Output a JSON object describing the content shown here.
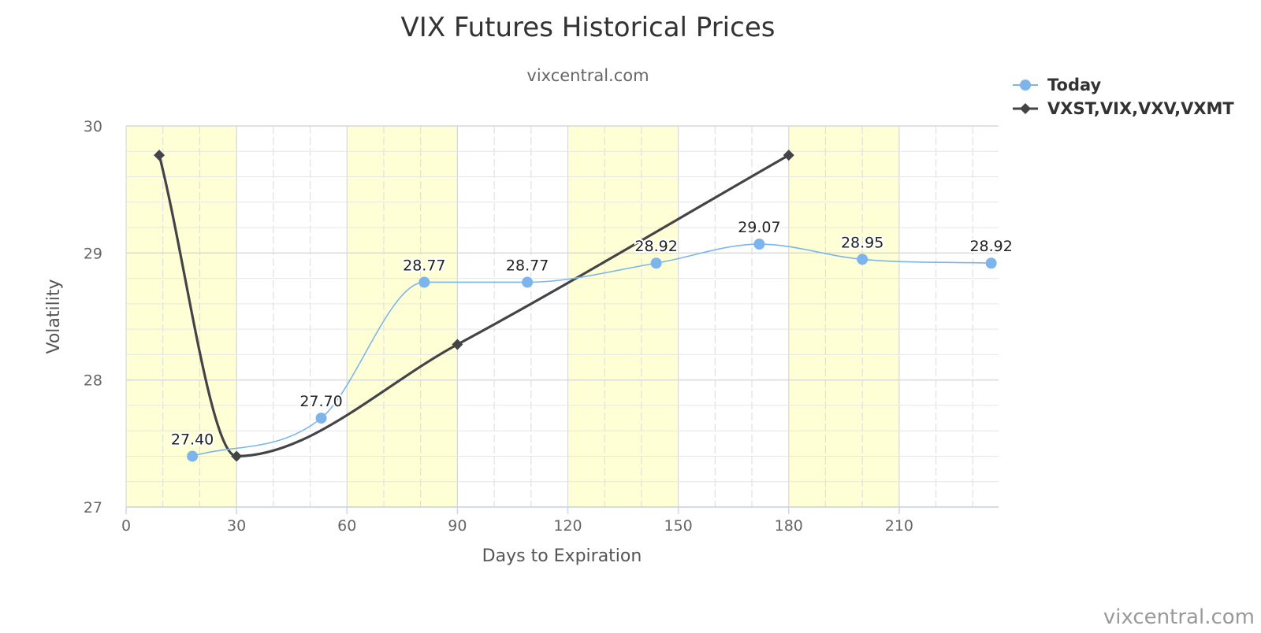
{
  "chart_data": {
    "type": "line",
    "title": "VIX Futures Historical Prices",
    "subtitle": "vixcentral.com",
    "xlabel": "Days to Expiration",
    "ylabel": "Volatility",
    "xlim": [
      0,
      237
    ],
    "ylim": [
      27,
      30
    ],
    "x_ticks": [
      0,
      30,
      60,
      90,
      120,
      150,
      180,
      210
    ],
    "y_ticks": [
      27,
      28,
      29,
      30
    ],
    "grid": true,
    "highlight_bands": [
      [
        0,
        30
      ],
      [
        60,
        90
      ],
      [
        120,
        150
      ],
      [
        180,
        210
      ]
    ],
    "legend_position": "top-right",
    "credit": "vixcentral.com",
    "series": [
      {
        "name": "Today",
        "color": "#7cb5ec",
        "marker": "circle",
        "smooth": true,
        "points": [
          {
            "x": 18,
            "y": 27.4,
            "label": "27.40"
          },
          {
            "x": 53,
            "y": 27.7,
            "label": "27.70"
          },
          {
            "x": 81,
            "y": 28.77,
            "label": "28.77"
          },
          {
            "x": 109,
            "y": 28.77,
            "label": "28.77"
          },
          {
            "x": 144,
            "y": 28.92,
            "label": "28.92"
          },
          {
            "x": 172,
            "y": 29.07,
            "label": "29.07"
          },
          {
            "x": 200,
            "y": 28.95,
            "label": "28.95"
          },
          {
            "x": 235,
            "y": 28.92,
            "label": "28.92"
          }
        ]
      },
      {
        "name": "VXST,VIX,VXV,VXMT",
        "color": "#434348",
        "marker": "diamond",
        "smooth": true,
        "points": [
          {
            "x": 9,
            "y": 29.77
          },
          {
            "x": 30,
            "y": 27.4
          },
          {
            "x": 90,
            "y": 28.28
          },
          {
            "x": 180,
            "y": 29.77
          }
        ]
      }
    ]
  }
}
